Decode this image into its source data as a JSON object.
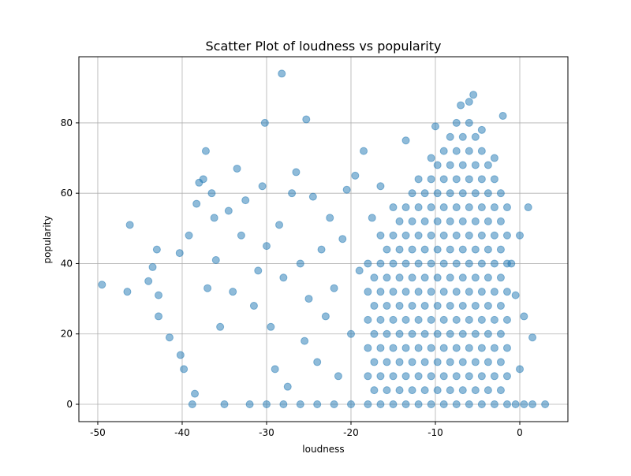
{
  "chart_data": {
    "type": "scatter",
    "title": "Scatter Plot of loudness vs popularity",
    "x_label": "loudness",
    "y_label": "popularity",
    "color": "#1f77b4",
    "grid": true,
    "xlim": [
      -52.24,
      5.7
    ],
    "ylim": [
      -4.93,
      98.8
    ],
    "xticks": [
      -50,
      -40,
      -30,
      -20,
      -10,
      0
    ],
    "yticks": [
      0,
      20,
      40,
      60,
      80
    ],
    "x": [
      -49.5,
      -46.5,
      -46.2,
      -44,
      -43.5,
      -43,
      -42.8,
      -42.8,
      -41.5,
      -40.3,
      -40.2,
      -39.8,
      -39.2,
      -38.8,
      -38.5,
      -38.3,
      -38,
      -37.5,
      -37.2,
      -37,
      -36.5,
      -36.2,
      -36,
      -35.5,
      -35,
      -34.5,
      -34,
      -33.5,
      -33,
      -32.5,
      -31.5,
      -31,
      -30.5,
      -30.2,
      -30,
      -29.5,
      -29,
      -28.5,
      -28.2,
      -28,
      -27.5,
      -27,
      -26.5,
      -26,
      -25.5,
      -25.3,
      -25,
      -24.5,
      -24,
      -23.5,
      -23,
      -22.5,
      -22,
      -21.5,
      -21,
      -20.5,
      -20,
      -19.5,
      -19,
      -18.5,
      -17.5,
      -16.5,
      -13.5,
      -10,
      -7,
      -5.5,
      -2,
      -32,
      -30,
      -28,
      -26,
      -24,
      -22,
      -20,
      -0.5,
      0.5,
      1.5,
      3,
      1.5,
      1,
      0,
      -0.5,
      0.5,
      0,
      -1,
      -18,
      -18,
      -18,
      -18,
      -18,
      -18,
      -16.5,
      -16.5,
      -16.5,
      -16.5,
      -16.5,
      -16.5,
      -16.5,
      -15,
      -15,
      -15,
      -15,
      -15,
      -15,
      -15,
      -15,
      -13.5,
      -13.5,
      -13.5,
      -13.5,
      -13.5,
      -13.5,
      -13.5,
      -13.5,
      -12,
      -12,
      -12,
      -12,
      -12,
      -12,
      -12,
      -12,
      -12,
      -10.5,
      -10.5,
      -10.5,
      -10.5,
      -10.5,
      -10.5,
      -10.5,
      -10.5,
      -10.5,
      -10.5,
      -9,
      -9,
      -9,
      -9,
      -9,
      -9,
      -9,
      -9,
      -9,
      -9,
      -7.5,
      -7.5,
      -7.5,
      -7.5,
      -7.5,
      -7.5,
      -7.5,
      -7.5,
      -7.5,
      -7.5,
      -7.5,
      -6,
      -6,
      -6,
      -6,
      -6,
      -6,
      -6,
      -6,
      -6,
      -6,
      -6,
      -6,
      -4.5,
      -4.5,
      -4.5,
      -4.5,
      -4.5,
      -4.5,
      -4.5,
      -4.5,
      -4.5,
      -4.5,
      -4.5,
      -3,
      -3,
      -3,
      -3,
      -3,
      -3,
      -3,
      -3,
      -3,
      -3,
      -1.5,
      -1.5,
      -1.5,
      -1.5,
      -1.5,
      -1.5,
      -1.5,
      -1.5,
      -17.25,
      -17.25,
      -17.25,
      -17.25,
      -17.25,
      -15.75,
      -15.75,
      -15.75,
      -15.75,
      -15.75,
      -15.75,
      -14.25,
      -14.25,
      -14.25,
      -14.25,
      -14.25,
      -14.25,
      -14.25,
      -12.75,
      -12.75,
      -12.75,
      -12.75,
      -12.75,
      -12.75,
      -12.75,
      -12.75,
      -11.25,
      -11.25,
      -11.25,
      -11.25,
      -11.25,
      -11.25,
      -11.25,
      -11.25,
      -9.75,
      -9.75,
      -9.75,
      -9.75,
      -9.75,
      -9.75,
      -9.75,
      -9.75,
      -9.75,
      -8.25,
      -8.25,
      -8.25,
      -8.25,
      -8.25,
      -8.25,
      -8.25,
      -8.25,
      -8.25,
      -8.25,
      -6.75,
      -6.75,
      -6.75,
      -6.75,
      -6.75,
      -6.75,
      -6.75,
      -6.75,
      -6.75,
      -6.75,
      -5.25,
      -5.25,
      -5.25,
      -5.25,
      -5.25,
      -5.25,
      -5.25,
      -5.25,
      -5.25,
      -5.25,
      -3.75,
      -3.75,
      -3.75,
      -3.75,
      -3.75,
      -3.75,
      -3.75,
      -3.75,
      -3.75,
      -2.25,
      -2.25,
      -2.25,
      -2.25,
      -2.25,
      -2.25,
      -2.25,
      -2.25
    ],
    "values": [
      34,
      32,
      51,
      35,
      39,
      44,
      31,
      25,
      19,
      43,
      14,
      10,
      48,
      0,
      3,
      57,
      63,
      64,
      72,
      33,
      60,
      53,
      41,
      22,
      0,
      55,
      32,
      67,
      48,
      58,
      28,
      38,
      62,
      80,
      45,
      22,
      10,
      51,
      94,
      36,
      5,
      60,
      66,
      40,
      18,
      81,
      30,
      59,
      12,
      44,
      25,
      53,
      33,
      8,
      47,
      61,
      20,
      65,
      38,
      72,
      53,
      62,
      75,
      79,
      85,
      88,
      82,
      0,
      0,
      0,
      0,
      0,
      0,
      0,
      0,
      0,
      0,
      0,
      19,
      56,
      48,
      31,
      25,
      10,
      40,
      0,
      8,
      16,
      24,
      32,
      40,
      0,
      8,
      16,
      24,
      32,
      40,
      48,
      0,
      8,
      16,
      24,
      32,
      40,
      48,
      56,
      0,
      8,
      16,
      24,
      32,
      40,
      48,
      56,
      0,
      8,
      16,
      24,
      32,
      40,
      48,
      56,
      64,
      0,
      8,
      16,
      24,
      32,
      40,
      48,
      56,
      64,
      70,
      0,
      8,
      16,
      24,
      32,
      40,
      48,
      56,
      64,
      72,
      0,
      8,
      16,
      24,
      32,
      40,
      48,
      56,
      64,
      72,
      80,
      0,
      8,
      16,
      24,
      32,
      40,
      48,
      56,
      64,
      72,
      80,
      86,
      0,
      8,
      16,
      24,
      32,
      40,
      48,
      56,
      64,
      72,
      78,
      0,
      8,
      16,
      24,
      32,
      40,
      48,
      56,
      64,
      70,
      0,
      8,
      16,
      24,
      32,
      40,
      48,
      56,
      4,
      12,
      20,
      28,
      36,
      4,
      12,
      20,
      28,
      36,
      44,
      4,
      12,
      20,
      28,
      36,
      44,
      52,
      4,
      12,
      20,
      28,
      36,
      44,
      52,
      60,
      4,
      12,
      20,
      28,
      36,
      44,
      52,
      60,
      4,
      12,
      20,
      28,
      36,
      44,
      52,
      60,
      68,
      4,
      12,
      20,
      28,
      36,
      44,
      52,
      60,
      68,
      76,
      4,
      12,
      20,
      28,
      36,
      44,
      52,
      60,
      68,
      76,
      4,
      12,
      20,
      28,
      36,
      44,
      52,
      60,
      68,
      76,
      4,
      12,
      20,
      28,
      36,
      44,
      52,
      60,
      68,
      4,
      12,
      20,
      28,
      36,
      44,
      52,
      60
    ]
  }
}
